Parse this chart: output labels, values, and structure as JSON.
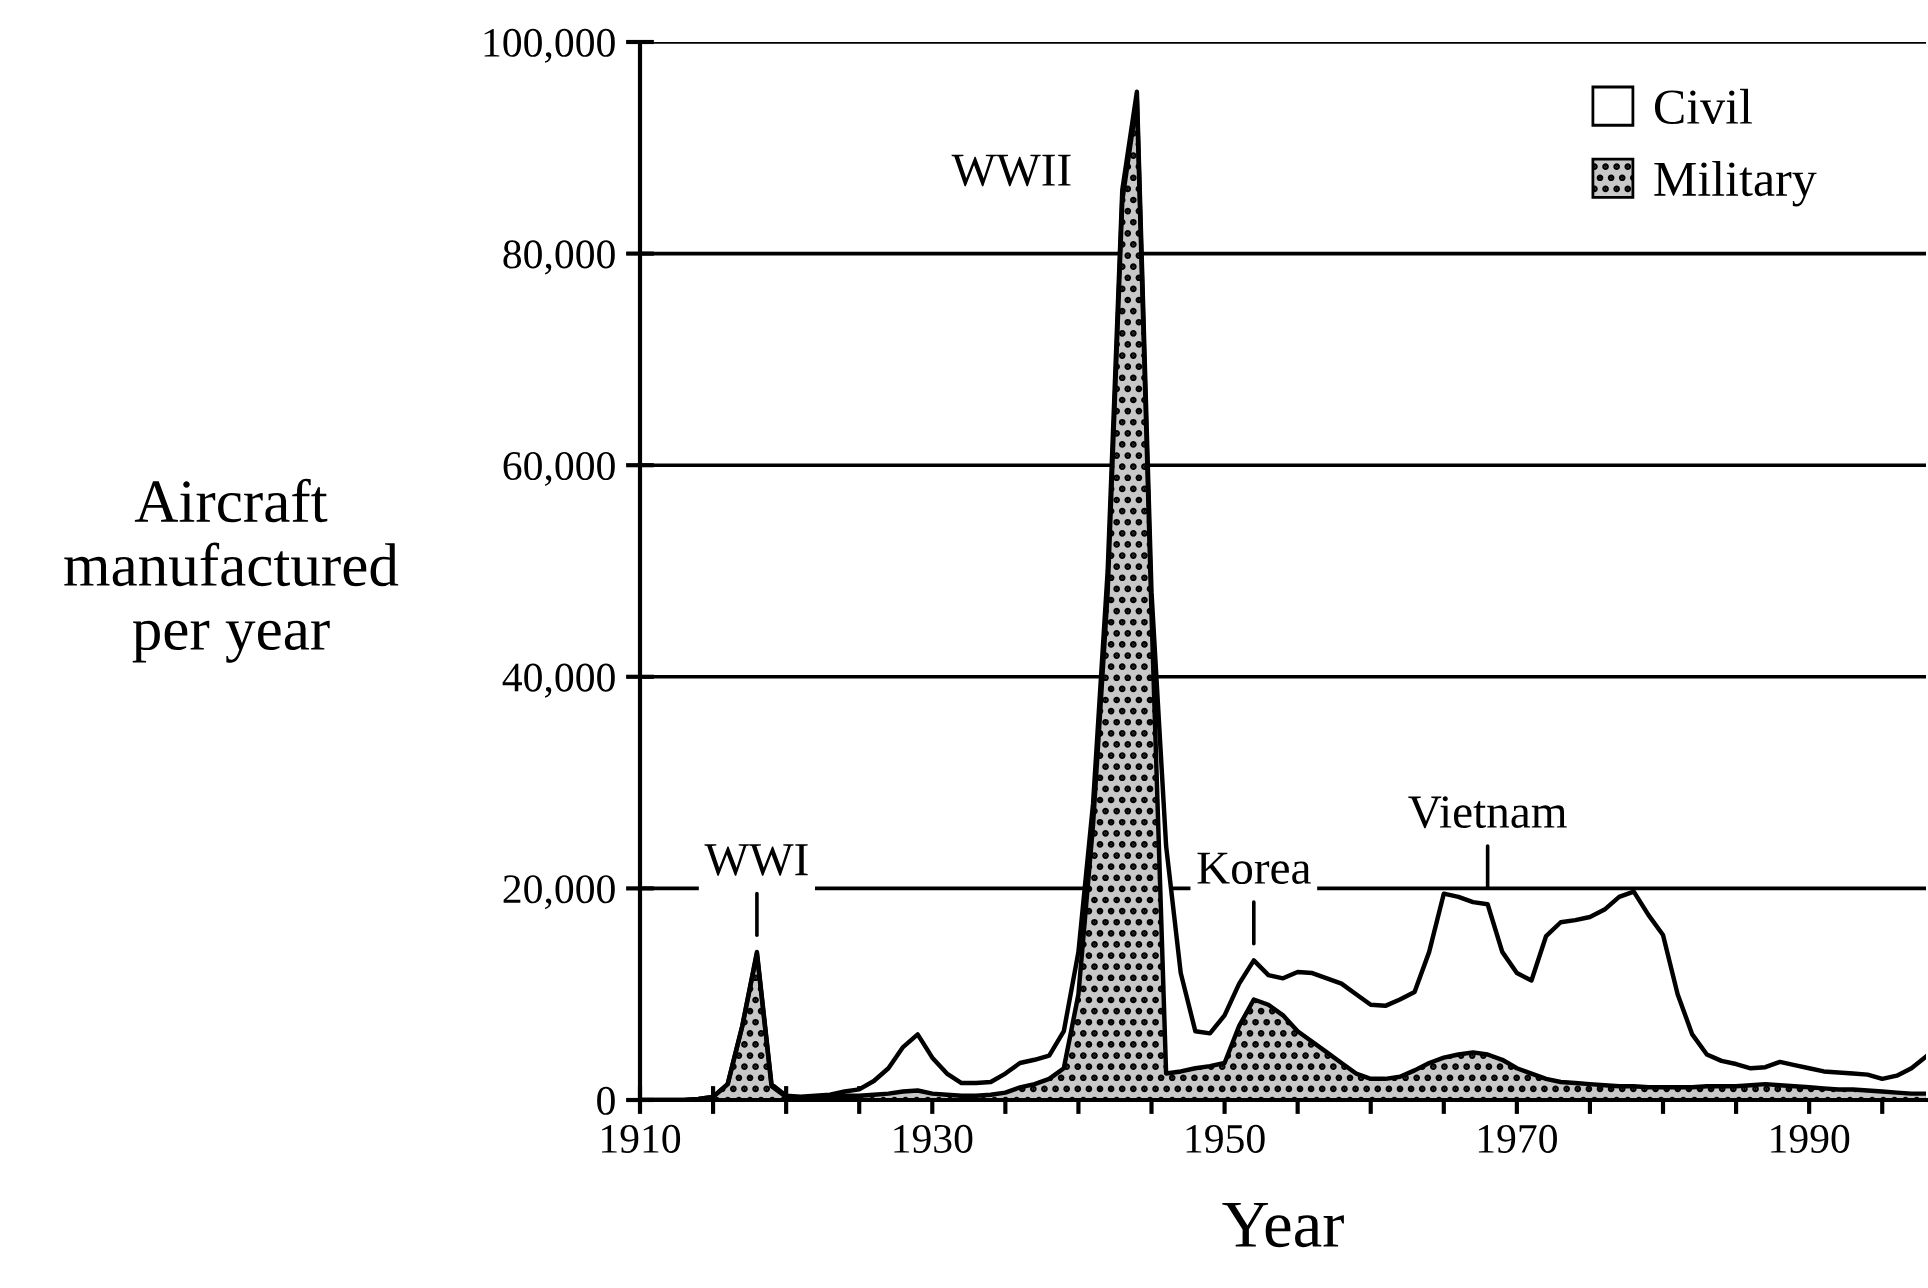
{
  "chart_data": {
    "type": "area",
    "stacked": true,
    "xlabel": "Year",
    "ylabel": "Aircraft\nmanufactured\nper year",
    "x": [
      1910,
      1911,
      1912,
      1913,
      1914,
      1915,
      1916,
      1917,
      1918,
      1919,
      1920,
      1921,
      1922,
      1923,
      1924,
      1925,
      1926,
      1927,
      1928,
      1929,
      1930,
      1931,
      1932,
      1933,
      1934,
      1935,
      1936,
      1937,
      1938,
      1939,
      1940,
      1941,
      1942,
      1943,
      1944,
      1945,
      1946,
      1947,
      1948,
      1949,
      1950,
      1951,
      1952,
      1953,
      1954,
      1955,
      1956,
      1957,
      1958,
      1959,
      1960,
      1961,
      1962,
      1963,
      1964,
      1965,
      1966,
      1967,
      1968,
      1969,
      1970,
      1971,
      1972,
      1973,
      1974,
      1975,
      1976,
      1977,
      1978,
      1979,
      1980,
      1981,
      1982,
      1983,
      1984,
      1985,
      1986,
      1987,
      1988,
      1989,
      1990,
      1991,
      1992,
      1993,
      1994,
      1995,
      1996,
      1997,
      1998
    ],
    "series": [
      {
        "name": "Military",
        "color": "#c8c8c8",
        "values": [
          0,
          0,
          0,
          0,
          100,
          300,
          1500,
          7000,
          13800,
          1300,
          300,
          200,
          200,
          300,
          400,
          400,
          500,
          600,
          800,
          900,
          600,
          500,
          400,
          400,
          500,
          700,
          1200,
          1500,
          2000,
          3000,
          10000,
          26000,
          48000,
          85000,
          94500,
          46000,
          2500,
          2700,
          3000,
          3200,
          3500,
          7000,
          9500,
          9000,
          8000,
          6500,
          5500,
          4500,
          3500,
          2500,
          2000,
          2000,
          2200,
          2800,
          3500,
          4000,
          4300,
          4500,
          4300,
          3800,
          3000,
          2500,
          2000,
          1700,
          1600,
          1500,
          1400,
          1300,
          1300,
          1200,
          1200,
          1200,
          1200,
          1300,
          1300,
          1300,
          1400,
          1500,
          1400,
          1300,
          1200,
          1100,
          1000,
          1000,
          900,
          800,
          700,
          600,
          600
        ]
      },
      {
        "name": "Civil",
        "color": "#ffffff",
        "values": [
          0,
          0,
          0,
          0,
          0,
          0,
          0,
          0,
          200,
          200,
          100,
          100,
          200,
          200,
          400,
          600,
          1300,
          2400,
          4200,
          5300,
          3400,
          2000,
          1200,
          1200,
          1200,
          1800,
          2300,
          2300,
          2200,
          3500,
          4000,
          2000,
          2000,
          1000,
          800,
          2000,
          21500,
          9300,
          3500,
          3100,
          4500,
          4000,
          3700,
          2800,
          3500,
          5600,
          6500,
          7000,
          7500,
          7500,
          7000,
          6900,
          7300,
          7400,
          10500,
          15500,
          14900,
          14200,
          14200,
          10200,
          9000,
          8800,
          13500,
          15100,
          15400,
          15800,
          16600,
          17900,
          18400,
          16300,
          14400,
          8800,
          5000,
          3000,
          2400,
          2100,
          1600,
          1600,
          2200,
          2000,
          1800,
          1600,
          1600,
          1500,
          1500,
          1200,
          1600,
          2400,
          3500
        ]
      }
    ],
    "annotations": [
      {
        "text": "WWI",
        "x": 1918,
        "y": 14000
      },
      {
        "text": "WWII",
        "x": 1944,
        "y": 95300
      },
      {
        "text": "Korea",
        "x": 1952,
        "y": 13200
      },
      {
        "text": "Vietnam",
        "x": 1968,
        "y": 18500
      }
    ],
    "xlim": [
      1910,
      1998
    ],
    "ylim": [
      0,
      100000
    ],
    "xticks": [
      1910,
      {
        "value": 1915,
        "label": null
      },
      {
        "value": 1920,
        "label": null
      },
      {
        "value": 1925,
        "label": null
      },
      1930,
      {
        "value": 1935,
        "label": null
      },
      {
        "value": 1940,
        "label": null
      },
      {
        "value": 1945,
        "label": null
      },
      1950,
      {
        "value": 1955,
        "label": null
      },
      {
        "value": 1960,
        "label": null
      },
      {
        "value": 1965,
        "label": null
      },
      1970,
      {
        "value": 1975,
        "label": null
      },
      {
        "value": 1980,
        "label": null
      },
      {
        "value": 1985,
        "label": null
      },
      1990,
      {
        "value": 1995,
        "label": null
      }
    ],
    "yticks": [
      {
        "value": 0,
        "label": "0"
      },
      {
        "value": 20000,
        "label": "20,000"
      },
      {
        "value": 40000,
        "label": "40,000"
      },
      {
        "value": 60000,
        "label": "60,000"
      },
      {
        "value": 80000,
        "label": "80,000"
      },
      {
        "value": 100000,
        "label": "100,000"
      }
    ],
    "grid": "y",
    "legend": "top right"
  }
}
